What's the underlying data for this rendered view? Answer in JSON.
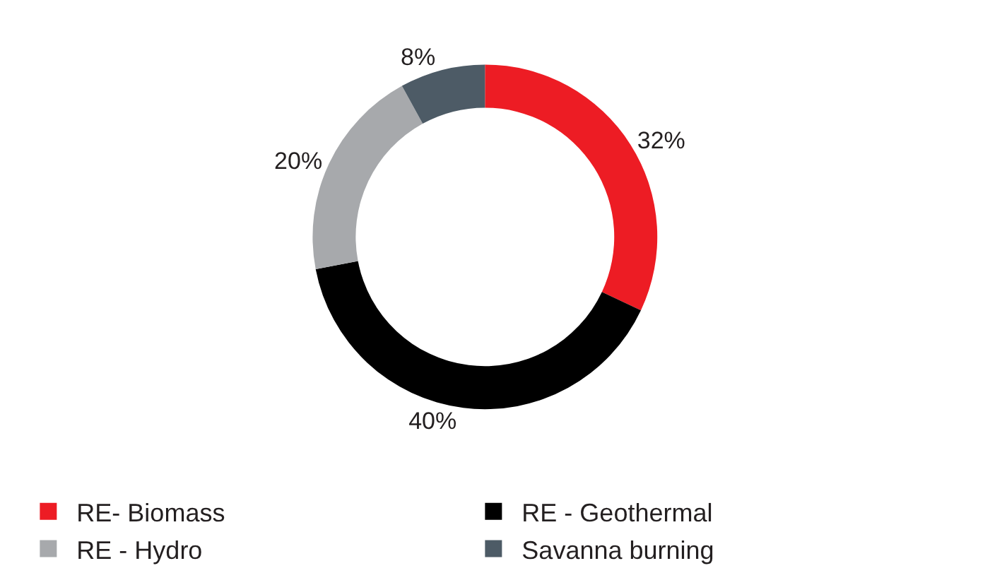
{
  "chart_data": {
    "type": "donut",
    "categories": [
      "RE- Biomass",
      "RE - Geothermal",
      "RE - Hydro",
      "Savanna burning"
    ],
    "values": [
      32,
      40,
      20,
      8
    ],
    "value_labels": [
      "32%",
      "40%",
      "20%",
      "8%"
    ],
    "colors": [
      "#ed1c24",
      "#000000",
      "#a7a9ac",
      "#4d5b66"
    ],
    "legend": "bottom"
  }
}
